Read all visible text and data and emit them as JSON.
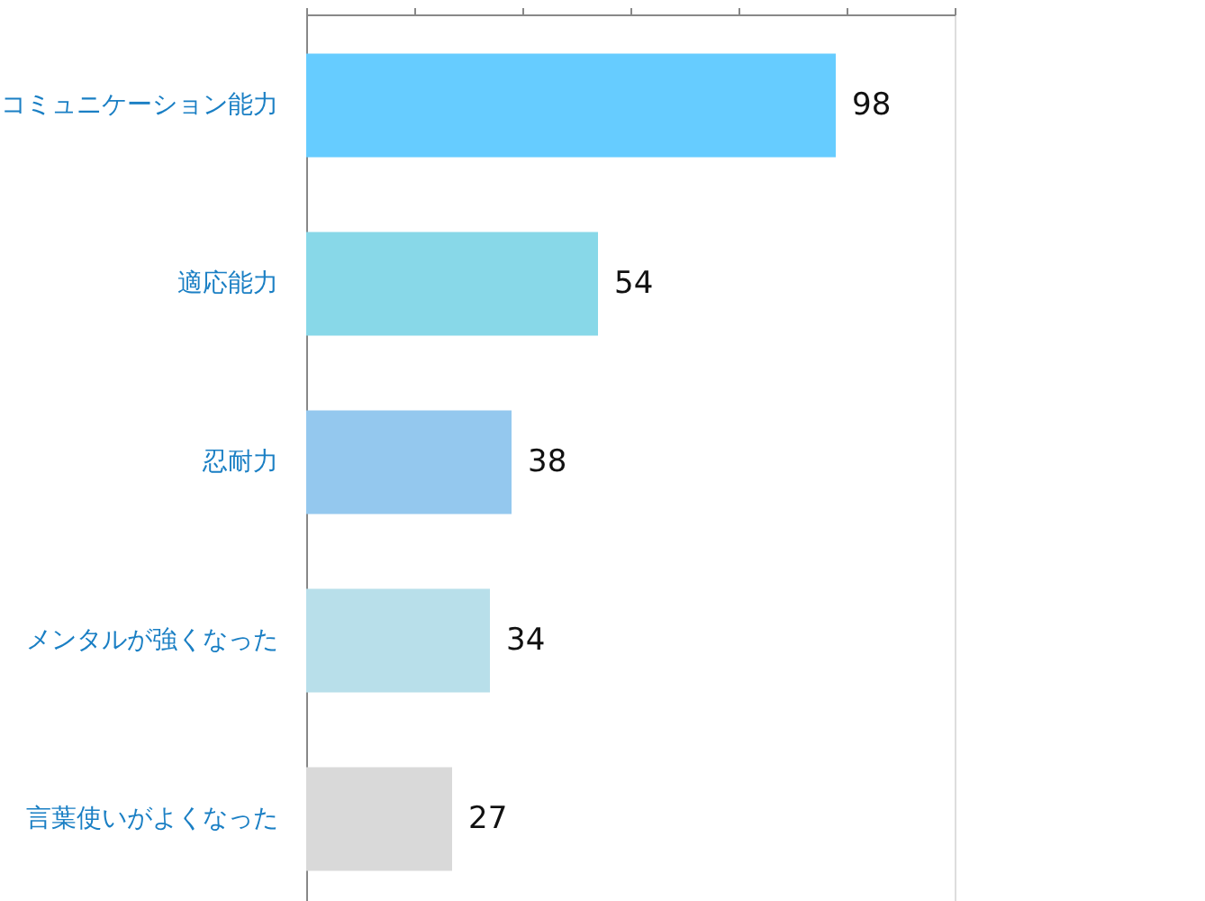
{
  "chart_data": {
    "type": "bar",
    "orientation": "horizontal",
    "categories": [
      "コミュニケーション能力",
      "適応能力",
      "忍耐力",
      "メンタルが強くなった",
      "言葉使いがよくなった"
    ],
    "values": [
      98,
      54,
      38,
      34,
      27
    ],
    "colors": [
      "#66ccff",
      "#88d8e8",
      "#94c8ee",
      "#b8dfea",
      "#d9d9d9"
    ],
    "xlim": [
      0,
      120
    ],
    "xticks": [
      {
        "value": 0,
        "label": null
      },
      {
        "value": 20,
        "label": null
      },
      {
        "value": 40,
        "label": null
      },
      {
        "value": 60,
        "label": null
      },
      {
        "value": 80,
        "label": null
      },
      {
        "value": 100,
        "label": null
      },
      {
        "value": 120,
        "label": null
      }
    ],
    "tick_labels": "y",
    "data_labels": true,
    "grid": false
  }
}
